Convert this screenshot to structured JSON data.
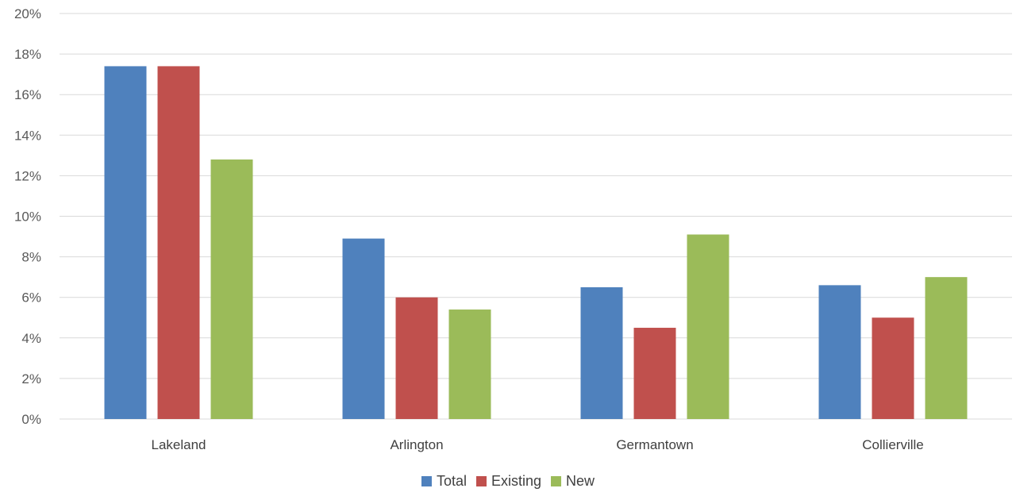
{
  "chart_data": {
    "type": "bar",
    "categories": [
      "Lakeland",
      "Arlington",
      "Germantown",
      "Collierville"
    ],
    "series": [
      {
        "name": "Total",
        "color": "#4f81bd",
        "values": [
          17.4,
          8.9,
          6.5,
          6.6
        ]
      },
      {
        "name": "Existing",
        "color": "#c0504d",
        "values": [
          17.4,
          6.0,
          4.5,
          5.0
        ]
      },
      {
        "name": "New",
        "color": "#9bbb59",
        "values": [
          12.8,
          5.4,
          9.1,
          7.0
        ]
      }
    ],
    "ylim": [
      0,
      20
    ],
    "yticks": [
      0,
      2,
      4,
      6,
      8,
      10,
      12,
      14,
      16,
      18,
      20
    ],
    "ytick_labels": [
      "0%",
      "2%",
      "4%",
      "6%",
      "8%",
      "10%",
      "12%",
      "14%",
      "16%",
      "18%",
      "20%"
    ],
    "grid": true,
    "legend_position": "bottom"
  }
}
